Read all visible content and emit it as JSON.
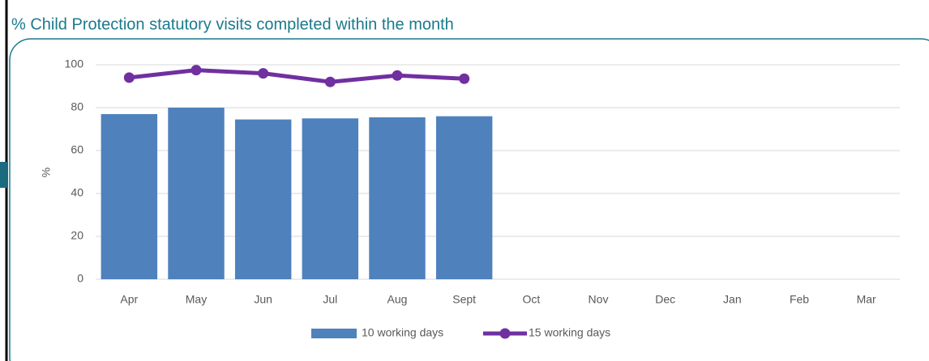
{
  "chart_data": {
    "type": "bar",
    "title": "% Child Protection statutory visits completed within the month",
    "y_label": "%",
    "categories": [
      "Apr",
      "May",
      "Jun",
      "Jul",
      "Aug",
      "Sept",
      "Oct",
      "Nov",
      "Dec",
      "Jan",
      "Feb",
      "Mar"
    ],
    "series": [
      {
        "name": "10 working days",
        "type": "bar",
        "color": "#4f81bd",
        "values": [
          77,
          80,
          74.5,
          75,
          75.5,
          76,
          null,
          null,
          null,
          null,
          null,
          null
        ]
      },
      {
        "name": "15 working days",
        "type": "line",
        "color": "#7030a0",
        "values": [
          94,
          97.5,
          96,
          92,
          95,
          93.5,
          null,
          null,
          null,
          null,
          null,
          null
        ]
      }
    ],
    "ylim": [
      0,
      100
    ],
    "yticks": [
      0,
      20,
      40,
      60,
      80,
      100
    ],
    "grid": true,
    "legend": "bottom"
  }
}
